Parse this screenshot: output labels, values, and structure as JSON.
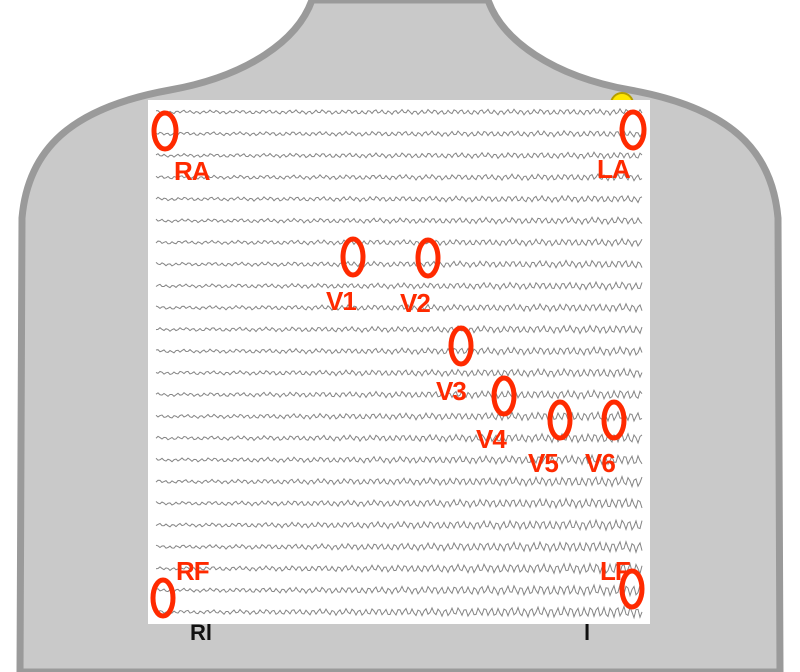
{
  "colors": {
    "background": "#ffffff",
    "torso_fill": "#c9c9c9",
    "torso_stroke": "#9a9a9a",
    "grid_paper": "#ffffff",
    "trace": "#6e6e6e",
    "electrode": "#ff2a00",
    "connector": "#ffe600"
  },
  "electrodes": [
    {
      "id": "ra",
      "label": "RA"
    },
    {
      "id": "la",
      "label": "LA"
    },
    {
      "id": "v1",
      "label": "V1"
    },
    {
      "id": "v2",
      "label": "V2"
    },
    {
      "id": "v3",
      "label": "V3"
    },
    {
      "id": "v4",
      "label": "V4"
    },
    {
      "id": "v5",
      "label": "V5"
    },
    {
      "id": "v6",
      "label": "V6"
    },
    {
      "id": "rf",
      "label": "RF"
    },
    {
      "id": "lf",
      "label": "LF"
    }
  ],
  "under_labels": {
    "left": "Rl",
    "right": "l"
  }
}
